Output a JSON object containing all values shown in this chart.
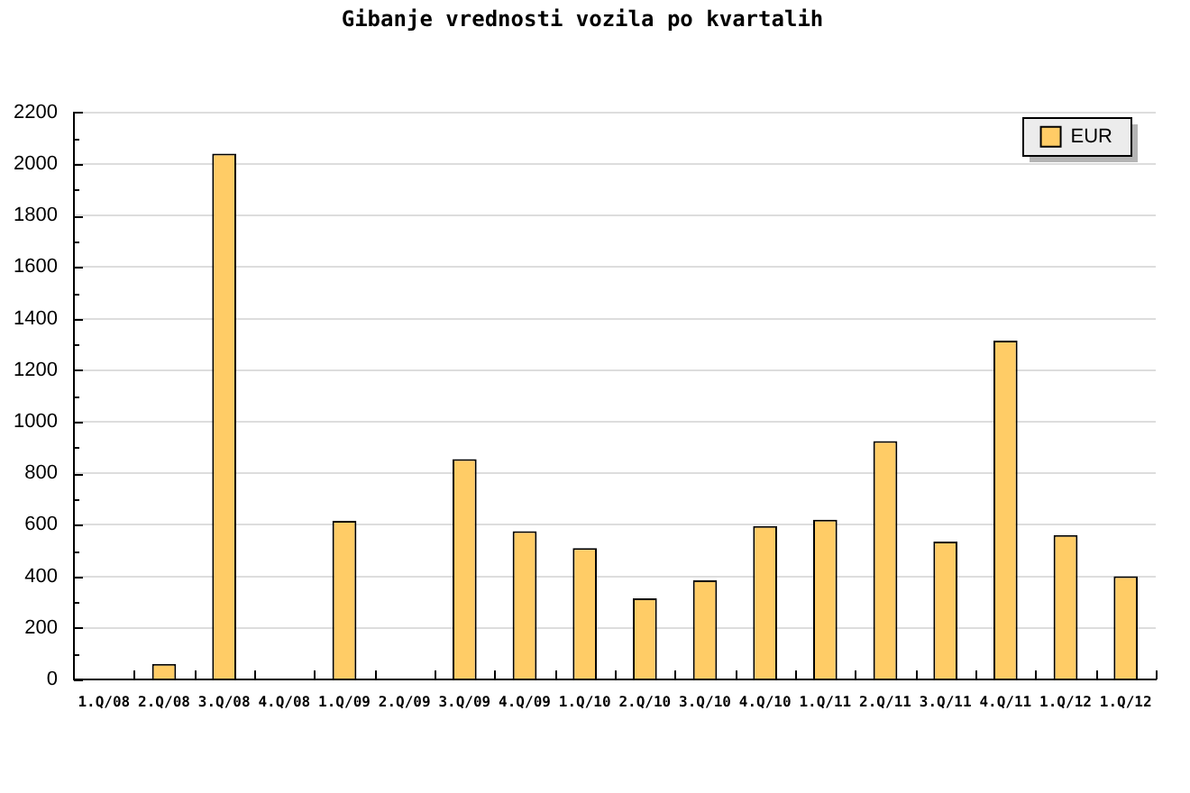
{
  "chart_data": {
    "type": "bar",
    "title": "Gibanje vrednosti vozila po kvartalih",
    "categories": [
      "1.Q/08",
      "2.Q/08",
      "3.Q/08",
      "4.Q/08",
      "1.Q/09",
      "2.Q/09",
      "3.Q/09",
      "4.Q/09",
      "1.Q/10",
      "2.Q/10",
      "3.Q/10",
      "4.Q/10",
      "1.Q/11",
      "2.Q/11",
      "3.Q/11",
      "4.Q/11",
      "1.Q/12",
      "1.Q/12"
    ],
    "series": [
      {
        "name": "EUR",
        "color": "#ffcc66",
        "values": [
          null,
          60,
          2040,
          null,
          615,
          null,
          855,
          575,
          510,
          315,
          385,
          595,
          620,
          925,
          535,
          1315,
          560,
          400
        ]
      }
    ],
    "ylim": [
      0,
      2200
    ],
    "yticks": [
      0,
      {
        "value": 100,
        "label": null
      },
      200,
      {
        "value": 300,
        "label": null
      },
      400,
      {
        "value": 500,
        "label": null
      },
      600,
      {
        "value": 700,
        "label": null
      },
      800,
      {
        "value": 900,
        "label": null
      },
      1000,
      {
        "value": 1100,
        "label": null
      },
      1200,
      {
        "value": 1300,
        "label": null
      },
      1400,
      {
        "value": 1500,
        "label": null
      },
      1600,
      {
        "value": 1700,
        "label": null
      },
      1800,
      {
        "value": 1900,
        "label": null
      },
      2000,
      {
        "value": 2100,
        "label": null
      },
      2200
    ],
    "grid": "y",
    "legend": "top right"
  }
}
